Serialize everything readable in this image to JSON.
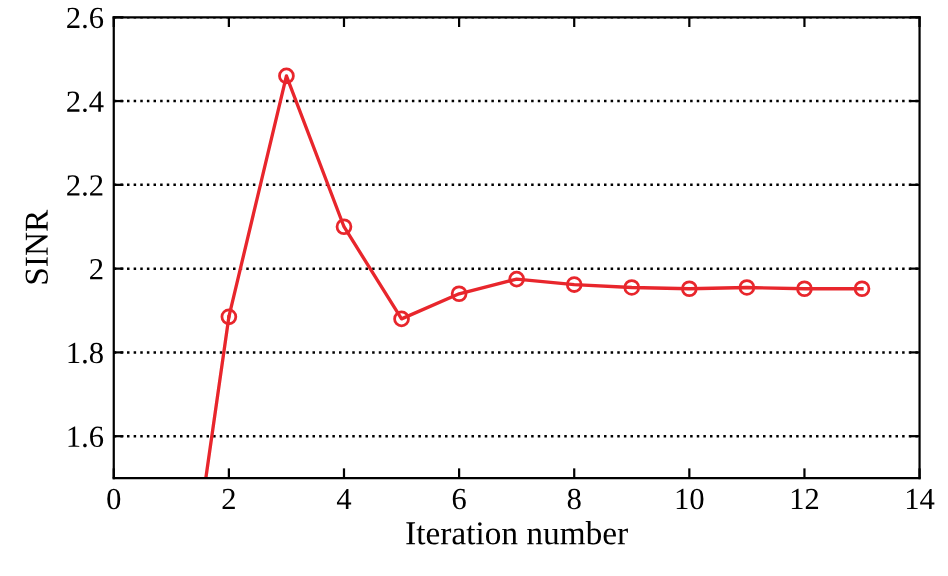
{
  "chart_data": {
    "type": "line",
    "xlabel": "Iteration number",
    "ylabel": "SINR",
    "xlim": [
      0,
      14
    ],
    "xticks": [
      0,
      2,
      4,
      6,
      8,
      10,
      12,
      14
    ],
    "ylim": [
      1.5,
      2.6
    ],
    "yticks": [
      1.6,
      1.8,
      2,
      2.2,
      2.4,
      2.6
    ],
    "grid": "y",
    "marker": "circle",
    "line_style": "solid",
    "series": [
      {
        "color": "#e8262c",
        "x": [
          2,
          3,
          4,
          5,
          6,
          7,
          8,
          9,
          10,
          11,
          12,
          13
        ],
        "values": [
          1.885,
          2.46,
          2.1,
          1.88,
          1.94,
          1.975,
          1.962,
          1.955,
          1.952,
          1.955,
          1.952,
          1.952
        ]
      },
      {
        "color": "#e8262c",
        "marker": "none",
        "x": [
          1.6,
          2
        ],
        "values": [
          1.5,
          1.885
        ]
      }
    ]
  }
}
